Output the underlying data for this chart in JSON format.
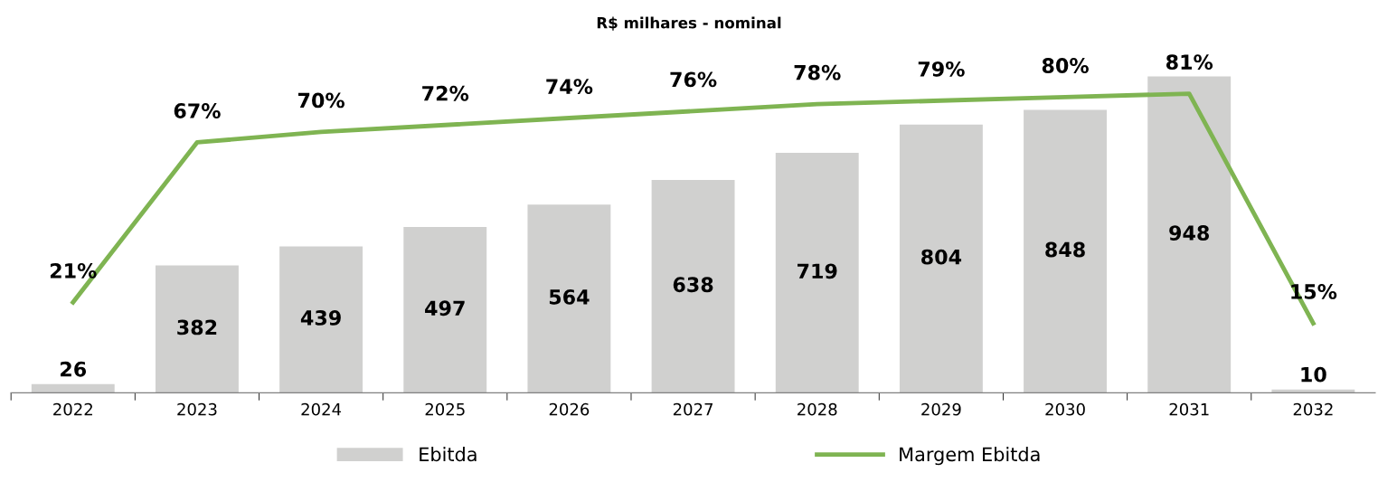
{
  "chart_data": {
    "type": "bar",
    "title": "R$ milhares - nominal",
    "categories": [
      "2022",
      "2023",
      "2024",
      "2025",
      "2026",
      "2027",
      "2028",
      "2029",
      "2030",
      "2031",
      "2032"
    ],
    "series": [
      {
        "name": "Ebitda",
        "color": "#d0d0cf",
        "values": [
          26,
          382,
          439,
          497,
          564,
          638,
          719,
          804,
          848,
          948,
          10
        ]
      },
      {
        "name": "Margem Ebitda",
        "type": "line",
        "axis": "y2",
        "color": "#7fb452",
        "values": [
          21,
          67,
          70,
          72,
          74,
          76,
          78,
          79,
          80,
          81,
          15
        ],
        "value_labels": [
          "21%",
          "67%",
          "70%",
          "72%",
          "74%",
          "76%",
          "78%",
          "79%",
          "80%",
          "81%",
          "15%"
        ]
      }
    ],
    "data_labels": true,
    "legend": "bottom",
    "tick_labels": "x"
  }
}
